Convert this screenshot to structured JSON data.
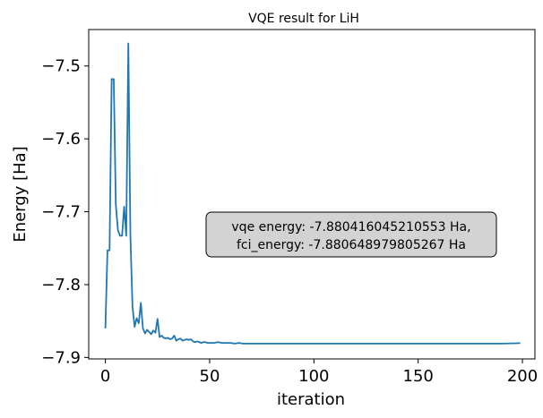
{
  "chart_data": {
    "type": "line",
    "title": "VQE result for LiH",
    "xlabel": "iteration",
    "ylabel": "Energy [Ha]",
    "xlim": [
      -8,
      206
    ],
    "ylim": [
      -7.902,
      -7.45
    ],
    "xticks": [
      0,
      50,
      100,
      150,
      200
    ],
    "yticks": [
      -7.9,
      -7.8,
      -7.7,
      -7.6,
      -7.5
    ],
    "xtick_labels": [
      "0",
      "50",
      "100",
      "150",
      "200"
    ],
    "ytick_labels": [
      "−7.9",
      "−7.8",
      "−7.7",
      "−7.6",
      "−7.5"
    ],
    "grid": false,
    "line_color": "#1f77b4",
    "series": [
      {
        "x": [
          0,
          1,
          2,
          3,
          4,
          5,
          6,
          7,
          8,
          9,
          10,
          11,
          12,
          13,
          14,
          15,
          16,
          17,
          18,
          19,
          20,
          21,
          22,
          23,
          24,
          25,
          26,
          27,
          28,
          29,
          30,
          31,
          32,
          33,
          34,
          35,
          36,
          37,
          38,
          39,
          40,
          41,
          42,
          43,
          44,
          45,
          46,
          47,
          48,
          49,
          50,
          52,
          54,
          56,
          58,
          60,
          62,
          64,
          66,
          68,
          70,
          75,
          80,
          90,
          100,
          110,
          120,
          130,
          140,
          150,
          160,
          170,
          180,
          190,
          199
        ],
        "y": [
          -7.86,
          -7.753,
          -7.753,
          -7.518,
          -7.518,
          -7.69,
          -7.725,
          -7.733,
          -7.733,
          -7.693,
          -7.733,
          -7.469,
          -7.733,
          -7.83,
          -7.858,
          -7.846,
          -7.853,
          -7.825,
          -7.86,
          -7.867,
          -7.862,
          -7.865,
          -7.868,
          -7.863,
          -7.866,
          -7.847,
          -7.872,
          -7.87,
          -7.873,
          -7.874,
          -7.873,
          -7.875,
          -7.874,
          -7.87,
          -7.877,
          -7.875,
          -7.874,
          -7.877,
          -7.876,
          -7.875,
          -7.876,
          -7.875,
          -7.878,
          -7.879,
          -7.878,
          -7.879,
          -7.88,
          -7.879,
          -7.879,
          -7.88,
          -7.88,
          -7.88,
          -7.879,
          -7.88,
          -7.88,
          -7.88,
          -7.881,
          -7.88,
          -7.881,
          -7.881,
          -7.881,
          -7.881,
          -7.881,
          -7.881,
          -7.881,
          -7.881,
          -7.881,
          -7.881,
          -7.881,
          -7.881,
          -7.881,
          -7.881,
          -7.881,
          -7.881,
          -7.8804
        ]
      }
    ],
    "annotation": {
      "line1": "vqe energy: -7.880416045210553 Ha,",
      "line2": "fci_energy: -7.880648979805267 Ha",
      "box_color": "#d3d3d3"
    }
  }
}
